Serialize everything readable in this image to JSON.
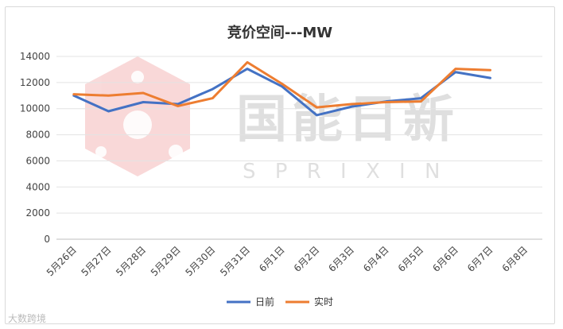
{
  "chart_data": {
    "type": "line",
    "title": "竞价空间---MW",
    "xlabel": "",
    "ylabel": "",
    "ylim": [
      0,
      14000
    ],
    "yticks": [
      0,
      2000,
      4000,
      6000,
      8000,
      10000,
      12000,
      14000
    ],
    "grid": "horizontal",
    "legend_position": "bottom",
    "categories": [
      "5月26日",
      "5月27日",
      "5月28日",
      "5月29日",
      "5月30日",
      "5月31日",
      "6月1日",
      "6月2日",
      "6月3日",
      "6月4日",
      "6月5日",
      "6月6日",
      "6月7日",
      "6月8日"
    ],
    "series": [
      {
        "name": "日前",
        "color": "#4472c4",
        "values": [
          11000,
          9800,
          10500,
          10350,
          11500,
          13050,
          11700,
          9500,
          10150,
          10550,
          10800,
          12800,
          12350,
          null
        ]
      },
      {
        "name": "实时",
        "color": "#ed7d31",
        "values": [
          11100,
          11000,
          11200,
          10200,
          10800,
          13550,
          11900,
          10100,
          10350,
          10500,
          10550,
          13050,
          12950,
          null
        ]
      }
    ]
  },
  "watermark": {
    "text": "国能日新",
    "subtext": "S P R I X I N",
    "logo_color": "#e03030"
  },
  "footer": {
    "text": "大数跨境"
  }
}
